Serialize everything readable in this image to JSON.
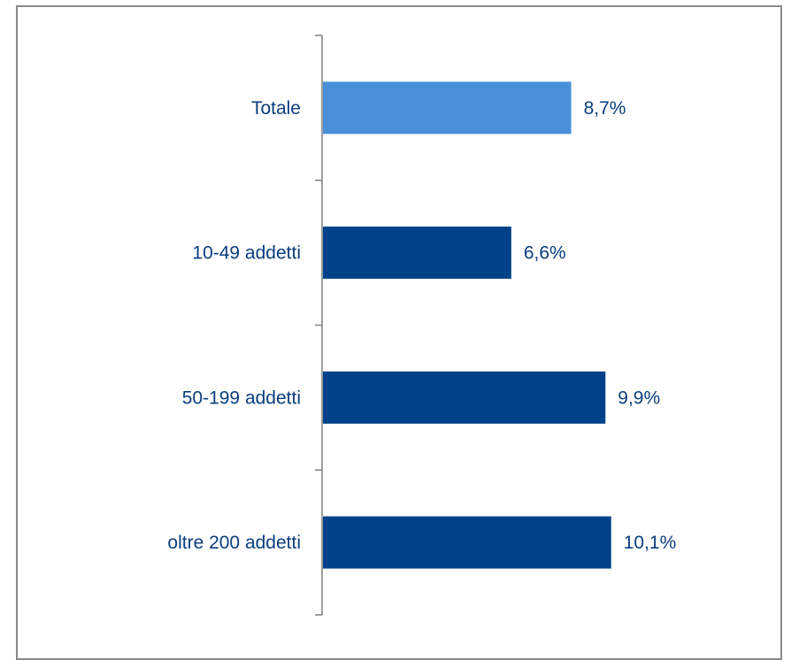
{
  "chart_data": {
    "type": "bar",
    "orientation": "horizontal",
    "categories": [
      "Totale",
      "10-49 addetti",
      "50-199 addetti",
      "oltre 200 addetti"
    ],
    "values": [
      8.7,
      6.6,
      9.9,
      10.1
    ],
    "value_labels": [
      "8,7%",
      "6,6%",
      "9,9%",
      "10,1%"
    ],
    "unit": "%",
    "xlim": [
      0,
      16
    ],
    "grid": false,
    "legend": "none",
    "colors": {
      "highlight": "#4a90d9",
      "default": "#004289",
      "label": "#0a3d7e",
      "axis": "#7f7f7f"
    },
    "highlight_index": 0
  }
}
